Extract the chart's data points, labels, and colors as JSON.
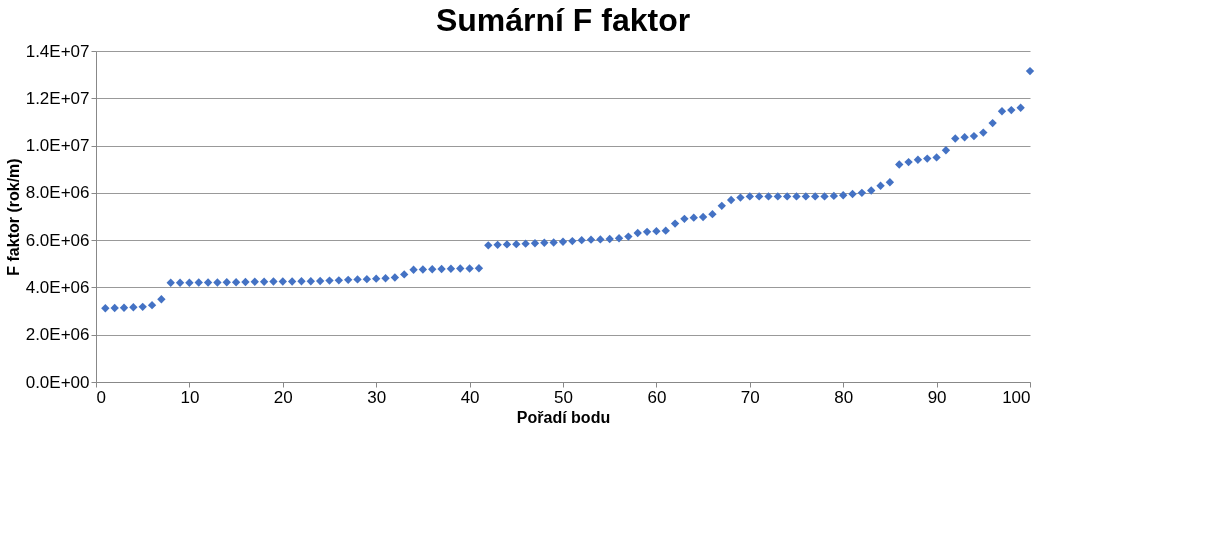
{
  "chart_data": {
    "type": "scatter",
    "title": "Sumární F faktor",
    "xlabel": "Pořadí bodu",
    "ylabel": "F faktor (rok/m)",
    "x": [
      1,
      2,
      3,
      4,
      5,
      6,
      7,
      8,
      9,
      10,
      11,
      12,
      13,
      14,
      15,
      16,
      17,
      18,
      19,
      20,
      21,
      22,
      23,
      24,
      25,
      26,
      27,
      28,
      29,
      30,
      31,
      32,
      33,
      34,
      35,
      36,
      37,
      38,
      39,
      40,
      41,
      42,
      43,
      44,
      45,
      46,
      47,
      48,
      49,
      50,
      51,
      52,
      53,
      54,
      55,
      56,
      57,
      58,
      59,
      60,
      61,
      62,
      63,
      64,
      65,
      66,
      67,
      68,
      69,
      70,
      71,
      72,
      73,
      74,
      75,
      76,
      77,
      78,
      79,
      80,
      81,
      82,
      83,
      84,
      85,
      86,
      87,
      88,
      89,
      90,
      91,
      92,
      93,
      94,
      95,
      96,
      97,
      98,
      99,
      100
    ],
    "series": [
      {
        "color": "#4472c4",
        "values": [
          3120000,
          3130000,
          3140000,
          3160000,
          3180000,
          3250000,
          3500000,
          4200000,
          4200000,
          4200000,
          4210000,
          4210000,
          4210000,
          4220000,
          4220000,
          4230000,
          4240000,
          4240000,
          4250000,
          4250000,
          4250000,
          4260000,
          4260000,
          4270000,
          4290000,
          4300000,
          4320000,
          4340000,
          4350000,
          4370000,
          4390000,
          4420000,
          4550000,
          4750000,
          4760000,
          4770000,
          4780000,
          4790000,
          4800000,
          4800000,
          4810000,
          5780000,
          5800000,
          5820000,
          5830000,
          5850000,
          5870000,
          5890000,
          5900000,
          5930000,
          5960000,
          6000000,
          6020000,
          6030000,
          6050000,
          6080000,
          6150000,
          6300000,
          6350000,
          6380000,
          6400000,
          6700000,
          6900000,
          6950000,
          6980000,
          7100000,
          7450000,
          7700000,
          7800000,
          7850000,
          7850000,
          7850000,
          7850000,
          7850000,
          7850000,
          7850000,
          7850000,
          7850000,
          7870000,
          7900000,
          7950000,
          8000000,
          8100000,
          8300000,
          8450000,
          9200000,
          9300000,
          9400000,
          9450000,
          9500000,
          9800000,
          10300000,
          10350000,
          10400000,
          10550000,
          10950000,
          11450000,
          11500000,
          11600000,
          13150000
        ]
      }
    ],
    "marker": "diamond",
    "grid": "y",
    "xlim": [
      0,
      100
    ],
    "xticks": [
      0,
      10,
      20,
      30,
      40,
      50,
      60,
      70,
      80,
      90,
      100
    ],
    "ylim": [
      0,
      14000000
    ],
    "yticks": [
      {
        "value": 0,
        "label": "0.0E+00"
      },
      {
        "value": 2000000,
        "label": "2.0E+06"
      },
      {
        "value": 4000000,
        "label": "4.0E+06"
      },
      {
        "value": 6000000,
        "label": "6.0E+06"
      },
      {
        "value": 8000000,
        "label": "8.0E+06"
      },
      {
        "value": 10000000,
        "label": "1.0E+07"
      },
      {
        "value": 12000000,
        "label": "1.2E+07"
      },
      {
        "value": 14000000,
        "label": "1.4E+07"
      }
    ]
  }
}
